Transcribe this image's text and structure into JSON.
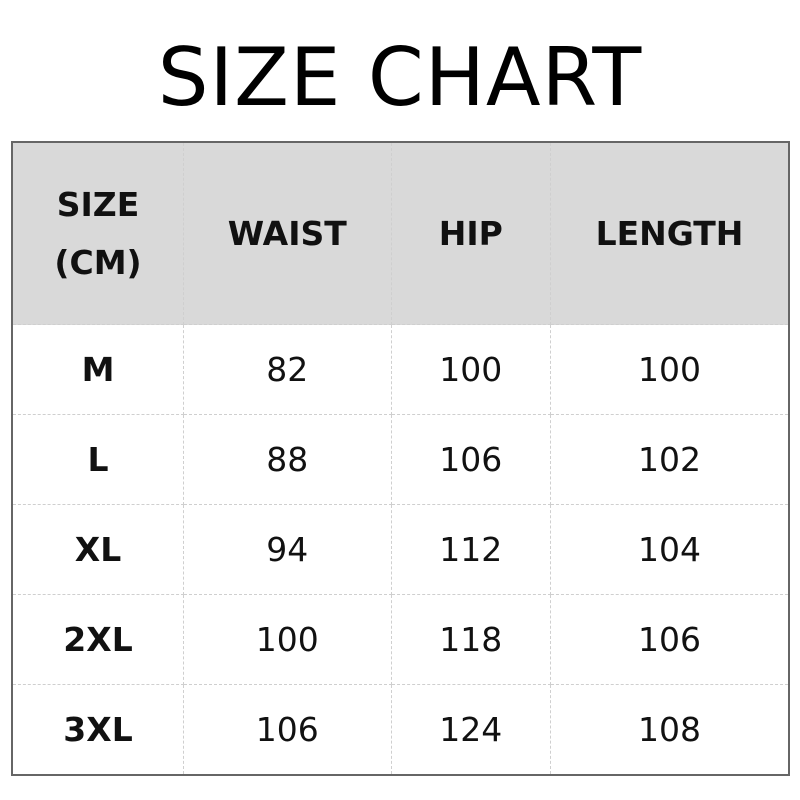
{
  "title": "SIZE CHART",
  "table": {
    "headers": [
      "SIZE",
      "(CM)",
      "WAIST",
      "HIP",
      "LENGTH"
    ],
    "rows": [
      [
        "M",
        "82",
        "100",
        "100"
      ],
      [
        "L",
        "88",
        "106",
        "102"
      ],
      [
        "XL",
        "94",
        "112",
        "104"
      ],
      [
        "2XL",
        "100",
        "118",
        "106"
      ],
      [
        "3XL",
        "106",
        "124",
        "108"
      ]
    ]
  },
  "colors": {
    "header_bg": "#d9d9d9",
    "border": "#666666"
  }
}
